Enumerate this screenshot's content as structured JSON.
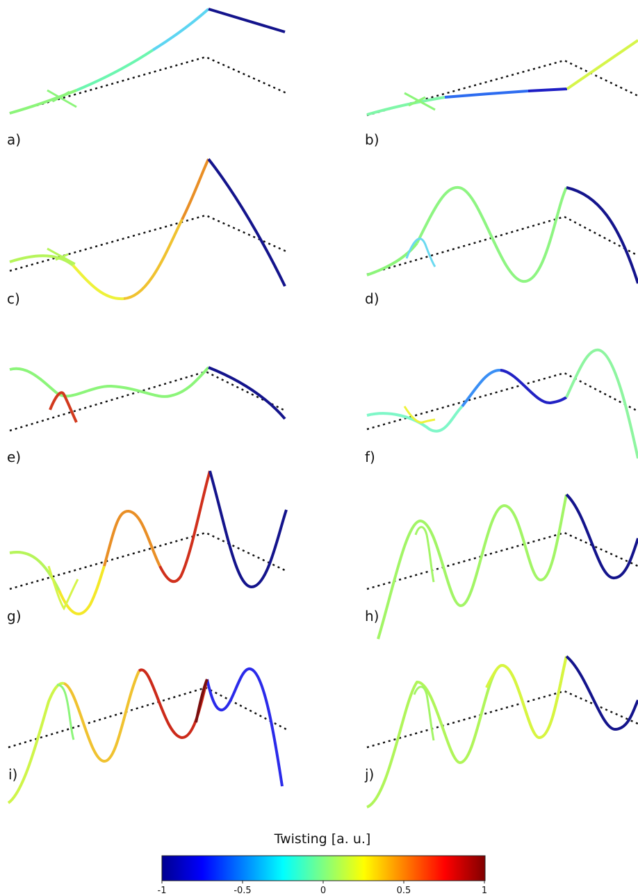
{
  "panels": [
    {
      "label": "a)"
    },
    {
      "label": "b)"
    },
    {
      "label": "c)"
    },
    {
      "label": "d)"
    },
    {
      "label": "e)"
    },
    {
      "label": "f)"
    },
    {
      "label": "g)"
    },
    {
      "label": "h)"
    },
    {
      "label": "i)"
    },
    {
      "label": "j)"
    }
  ],
  "colorbar": {
    "title": "Twisting [a. u.]",
    "colormap": "jet",
    "min": -1,
    "max": 1,
    "ticks": [
      "-1",
      "-0.5",
      "0",
      "0.5",
      "1"
    ]
  }
}
